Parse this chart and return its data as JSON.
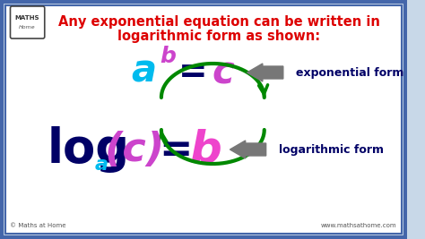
{
  "bg_outer": "#c8d8e8",
  "bg_inner": "#ffffff",
  "border_color": "#4466aa",
  "title_line1": "Any exponential equation can be written in",
  "title_line2": "logarithmic form as shown:",
  "title_color": "#dd0000",
  "exp_label": "exponential form",
  "log_label": "logarithmic form",
  "label_color": "#000066",
  "cyan_color": "#00bbee",
  "magenta_color": "#cc44cc",
  "pink_color": "#ee44cc",
  "green_color": "#008800",
  "arrow_color": "#777777",
  "watermark_left": "© Maths at Home",
  "watermark_right": "www.mathsathome.com"
}
